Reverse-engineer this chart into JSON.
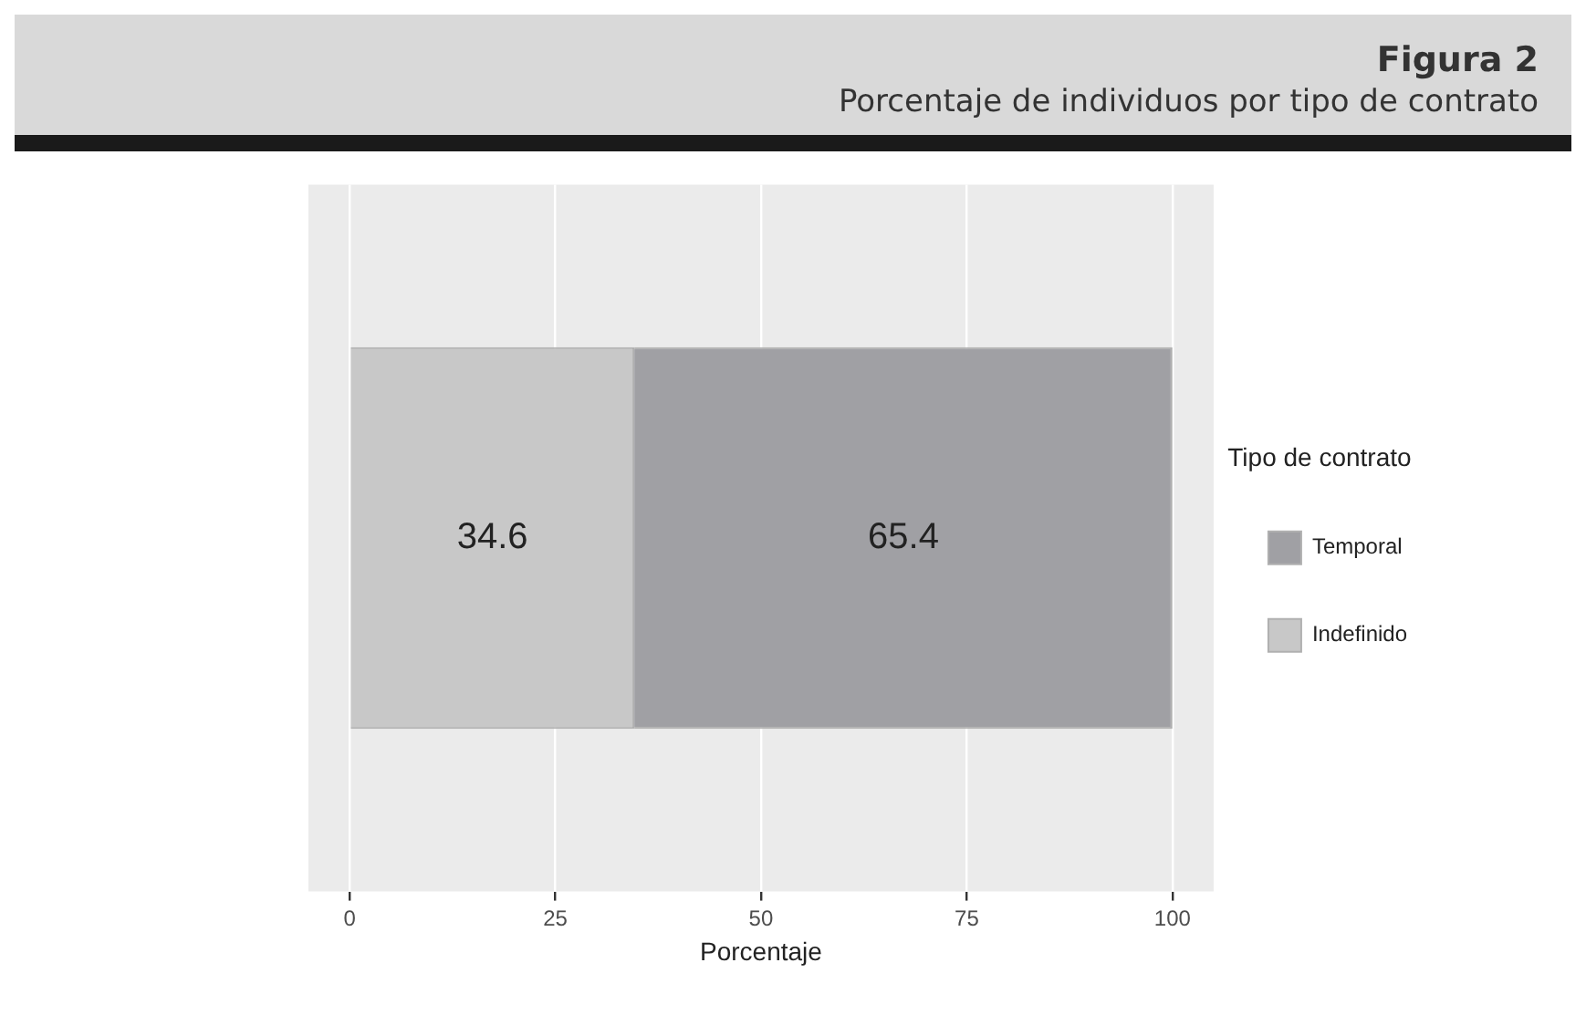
{
  "chart_data": {
    "type": "bar",
    "orientation": "horizontal",
    "stacked": true,
    "title": "Figura 2",
    "subtitle": "Porcentaje de individuos por tipo de contrato",
    "xlabel": "Porcentaje",
    "legend_title": "Tipo de contrato",
    "categories": [
      null
    ],
    "series": [
      {
        "name": "Indefinido",
        "color": "#c8c8c8",
        "values": [
          34.6
        ]
      },
      {
        "name": "Temporal",
        "color": "#a0a0a4",
        "values": [
          65.4
        ]
      }
    ],
    "xlim": [
      -5,
      105
    ],
    "xticks": [
      0,
      25,
      50,
      75,
      100
    ],
    "grid": "x",
    "legend": "right",
    "data_labels": true
  }
}
